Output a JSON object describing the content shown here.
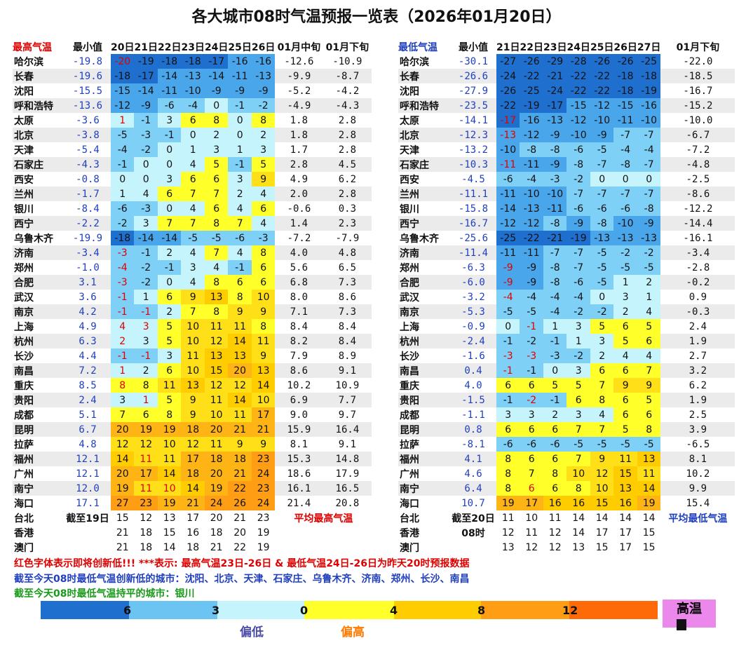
{
  "title": "各大城市08时气温预报一览表（2026年01月20日）",
  "colors": {
    "hot": "#ec88ec",
    "red_text": "#e00000",
    "blue_text": "#1f3fbf",
    "green_text": "#1a9a1a"
  },
  "left_table": {
    "headers": [
      "最高气温",
      "最小值",
      "20日",
      "21日",
      "22日",
      "23日",
      "24日",
      "25日",
      "26日",
      "01月中旬",
      "01月下旬"
    ],
    "rows": [
      [
        "哈尔滨",
        "-19.8",
        "-20",
        "-19",
        "-18",
        "-18",
        "-17",
        "-16",
        "-16",
        "-12.6",
        "-10.9"
      ],
      [
        "长春",
        "-19.6",
        "-18",
        "-17",
        "-14",
        "-13",
        "-14",
        "-11",
        "-13",
        "-9.9",
        "-8.7"
      ],
      [
        "沈阳",
        "-15.5",
        "-15",
        "-14",
        "-11",
        "-10",
        "-9",
        "-9",
        "-9",
        "-5.2",
        "-4.2"
      ],
      [
        "呼和浩特",
        "-13.6",
        "-12",
        "-9",
        "-6",
        "-4",
        "0",
        "-1",
        "-2",
        "-4.9",
        "-4.3"
      ],
      [
        "太原",
        "-3.6",
        "1",
        "-1",
        "3",
        "6",
        "8",
        "0",
        "8",
        "1.8",
        "2.8"
      ],
      [
        "北京",
        "-3.8",
        "-5",
        "-3",
        "-1",
        "0",
        "2",
        "0",
        "2",
        "1.8",
        "2.8"
      ],
      [
        "天津",
        "-5.4",
        "-4",
        "-2",
        "0",
        "1",
        "3",
        "1",
        "3",
        "1.7",
        "2.8"
      ],
      [
        "石家庄",
        "-4.3",
        "-1",
        "0",
        "0",
        "4",
        "5",
        "-1",
        "5",
        "2.8",
        "4.5"
      ],
      [
        "西安",
        "-0.8",
        "0",
        "0",
        "3",
        "6",
        "6",
        "3",
        "9",
        "4.9",
        "6.2"
      ],
      [
        "兰州",
        "-1.7",
        "1",
        "4",
        "6",
        "7",
        "7",
        "2",
        "4",
        "2.0",
        "2.8"
      ],
      [
        "银川",
        "-8.4",
        "-6",
        "-3",
        "0",
        "4",
        "6",
        "4",
        "6",
        "-0.6",
        "0.3"
      ],
      [
        "西宁",
        "-2.2",
        "-2",
        "3",
        "7",
        "7",
        "8",
        "7",
        "4",
        "1.4",
        "2.3"
      ],
      [
        "乌鲁木齐",
        "-19.9",
        "-18",
        "-14",
        "-14",
        "-5",
        "-5",
        "-6",
        "-3",
        "-7.2",
        "-7.9"
      ],
      [
        "济南",
        "-3.4",
        "-3",
        "-1",
        "2",
        "4",
        "7",
        "4",
        "8",
        "4.0",
        "4.8"
      ],
      [
        "郑州",
        "-1.0",
        "-4",
        "-2",
        "-1",
        "3",
        "4",
        "-1",
        "6",
        "5.6",
        "6.5"
      ],
      [
        "合肥",
        "3.1",
        "-3",
        "-2",
        "0",
        "4",
        "8",
        "6",
        "6",
        "6.8",
        "7.3"
      ],
      [
        "武汉",
        "3.6",
        "-1",
        "1",
        "6",
        "9",
        "13",
        "8",
        "10",
        "8.0",
        "8.6"
      ],
      [
        "南京",
        "4.2",
        "-1",
        "-1",
        "2",
        "7",
        "8",
        "9",
        "9",
        "7.1",
        "7.3"
      ],
      [
        "上海",
        "4.9",
        "4",
        "3",
        "5",
        "10",
        "11",
        "11",
        "8",
        "8.4",
        "8.4"
      ],
      [
        "杭州",
        "6.3",
        "2",
        "3",
        "5",
        "10",
        "12",
        "14",
        "11",
        "8.2",
        "8.4"
      ],
      [
        "长沙",
        "4.4",
        "-1",
        "-1",
        "3",
        "11",
        "13",
        "13",
        "9",
        "7.9",
        "8.9"
      ],
      [
        "南昌",
        "7.2",
        "1",
        "2",
        "6",
        "10",
        "15",
        "20",
        "13",
        "8.6",
        "9.1"
      ],
      [
        "重庆",
        "8.5",
        "8",
        "8",
        "11",
        "13",
        "12",
        "12",
        "14",
        "10.2",
        "10.9"
      ],
      [
        "贵阳",
        "2.4",
        "3",
        "1",
        "5",
        "9",
        "11",
        "14",
        "10",
        "6.9",
        "7.7"
      ],
      [
        "成都",
        "5.1",
        "7",
        "6",
        "8",
        "9",
        "10",
        "11",
        "17",
        "9.0",
        "9.7"
      ],
      [
        "昆明",
        "6.7",
        "20",
        "19",
        "19",
        "18",
        "20",
        "21",
        "21",
        "15.9",
        "16.4"
      ],
      [
        "拉萨",
        "4.8",
        "12",
        "12",
        "10",
        "12",
        "11",
        "9",
        "9",
        "8.1",
        "9.1"
      ],
      [
        "福州",
        "12.1",
        "14",
        "11",
        "11",
        "17",
        "18",
        "18",
        "23",
        "15.3",
        "14.8"
      ],
      [
        "广州",
        "12.1",
        "20",
        "17",
        "14",
        "18",
        "20",
        "21",
        "24",
        "18.6",
        "17.9"
      ],
      [
        "南宁",
        "12.0",
        "19",
        "11",
        "10",
        "14",
        "19",
        "22",
        "23",
        "16.1",
        "16.5"
      ],
      [
        "海口",
        "17.1",
        "27",
        "23",
        "19",
        "21",
        "24",
        "26",
        "24",
        "21.4",
        "20.8"
      ]
    ],
    "red_cells": [
      "0-2",
      "4-2",
      "13-2",
      "14-2",
      "15-2",
      "16-2",
      "17-2",
      "18-2",
      "19-2",
      "20-2",
      "21-2",
      "22-2",
      "18-3",
      "20-3",
      "17-3",
      "23-3",
      "27-3",
      "29-3",
      "29-4"
    ],
    "extra_rows": [
      [
        "台北",
        "截至19日",
        "15",
        "12",
        "13",
        "17",
        "20",
        "21",
        "23",
        "平均最高气温"
      ],
      [
        "香港",
        "",
        "21",
        "18",
        "15",
        "16",
        "18",
        "20",
        "19",
        ""
      ],
      [
        "澳门",
        "",
        "21",
        "18",
        "14",
        "18",
        "21",
        "22",
        "19",
        ""
      ]
    ]
  },
  "right_table": {
    "headers": [
      "最低气温",
      "最小值",
      "21日",
      "22日",
      "23日",
      "24日",
      "25日",
      "26日",
      "27日",
      "01月下旬"
    ],
    "rows": [
      [
        "哈尔滨",
        "-30.1",
        "-27",
        "-26",
        "-29",
        "-28",
        "-26",
        "-26",
        "-25",
        "-22.0"
      ],
      [
        "长春",
        "-26.6",
        "-24",
        "-22",
        "-21",
        "-22",
        "-22",
        "-18",
        "-18",
        "-18.5"
      ],
      [
        "沈阳",
        "-27.9",
        "-26",
        "-25",
        "-24",
        "-22",
        "-22",
        "-18",
        "-19",
        "-16.7"
      ],
      [
        "呼和浩特",
        "-23.5",
        "-22",
        "-19",
        "-17",
        "-15",
        "-12",
        "-15",
        "-16",
        "-15.2"
      ],
      [
        "太原",
        "-14.1",
        "-17",
        "-16",
        "-13",
        "-12",
        "-10",
        "-11",
        "-10",
        "-10.0"
      ],
      [
        "北京",
        "-12.3",
        "-13",
        "-12",
        "-9",
        "-10",
        "-9",
        "-7",
        "-7",
        "-6.7"
      ],
      [
        "天津",
        "-13.2",
        "-10",
        "-8",
        "-8",
        "-6",
        "-5",
        "-4",
        "-4",
        "-7.2"
      ],
      [
        "石家庄",
        "-10.3",
        "-11",
        "-11",
        "-9",
        "-8",
        "-7",
        "-8",
        "-7",
        "-4.8"
      ],
      [
        "西安",
        "-4.5",
        "-6",
        "-4",
        "-3",
        "-2",
        "0",
        "0",
        "0",
        "-2.5"
      ],
      [
        "兰州",
        "-11.1",
        "-11",
        "-10",
        "-10",
        "-7",
        "-7",
        "-7",
        "-7",
        "-8.6"
      ],
      [
        "银川",
        "-15.8",
        "-14",
        "-13",
        "-11",
        "-6",
        "-6",
        "-6",
        "-8",
        "-12.2"
      ],
      [
        "西宁",
        "-16.7",
        "-12",
        "-12",
        "-8",
        "-9",
        "-8",
        "-10",
        "-9",
        "-14.4"
      ],
      [
        "乌鲁木齐",
        "-25.6",
        "-25",
        "-22",
        "-21",
        "-19",
        "-13",
        "-13",
        "-13",
        "-16.1"
      ],
      [
        "济南",
        "-11.4",
        "-11",
        "-11",
        "-7",
        "-7",
        "-5",
        "-2",
        "-2",
        "-3.4"
      ],
      [
        "郑州",
        "-6.3",
        "-9",
        "-9",
        "-8",
        "-7",
        "-5",
        "-5",
        "-5",
        "-2.8"
      ],
      [
        "合肥",
        "-6.0",
        "-9",
        "-9",
        "-8",
        "-6",
        "-5",
        "1",
        "2",
        "-0.2"
      ],
      [
        "武汉",
        "-3.2",
        "-4",
        "-4",
        "-4",
        "-4",
        "0",
        "3",
        "1",
        "0.9"
      ],
      [
        "南京",
        "-5.3",
        "-5",
        "-5",
        "-4",
        "-2",
        "-2",
        "2",
        "4",
        "-0.3"
      ],
      [
        "上海",
        "-0.9",
        "0",
        "-1",
        "1",
        "3",
        "5",
        "6",
        "5",
        "2.4"
      ],
      [
        "杭州",
        "-2.4",
        "-1",
        "-2",
        "-1",
        "1",
        "3",
        "5",
        "6",
        "1.9"
      ],
      [
        "长沙",
        "-1.6",
        "-3",
        "-3",
        "-3",
        "-2",
        "2",
        "4",
        "4",
        "2.7"
      ],
      [
        "南昌",
        "0.4",
        "-1",
        "-1",
        "0",
        "3",
        "6",
        "6",
        "7",
        "3.2"
      ],
      [
        "重庆",
        "4.0",
        "6",
        "6",
        "5",
        "5",
        "7",
        "9",
        "9",
        "6.2"
      ],
      [
        "贵阳",
        "-1.5",
        "-1",
        "-2",
        "-1",
        "6",
        "8",
        "6",
        "5",
        "1.9"
      ],
      [
        "成都",
        "-1.1",
        "3",
        "3",
        "2",
        "3",
        "4",
        "6",
        "6",
        "2.5"
      ],
      [
        "昆明",
        "0.8",
        "6",
        "6",
        "6",
        "7",
        "7",
        "5",
        "8",
        "3.9"
      ],
      [
        "拉萨",
        "-8.1",
        "-6",
        "-6",
        "-6",
        "-5",
        "-5",
        "-5",
        "-5",
        "-6.5"
      ],
      [
        "福州",
        "4.1",
        "8",
        "6",
        "6",
        "7",
        "9",
        "11",
        "13",
        "8.1"
      ],
      [
        "广州",
        "4.6",
        "8",
        "7",
        "8",
        "10",
        "12",
        "15",
        "11",
        "10.2"
      ],
      [
        "南宁",
        "6.4",
        "8",
        "6",
        "6",
        "8",
        "10",
        "13",
        "14",
        "9.9"
      ],
      [
        "海口",
        "10.7",
        "19",
        "17",
        "16",
        "16",
        "15",
        "16",
        "19",
        "15.4"
      ]
    ],
    "red_cells": [
      "4-2",
      "5-2",
      "7-2",
      "14-2",
      "15-2",
      "16-2",
      "20-2",
      "21-2",
      "20-3",
      "18-3",
      "23-3",
      "29-3"
    ],
    "extra_rows": [
      [
        "台北",
        "截至20日",
        "11",
        "10",
        "11",
        "14",
        "14",
        "14",
        "14",
        "平均最低气温"
      ],
      [
        "香港",
        "08时",
        "12",
        "11",
        "12",
        "14",
        "17",
        "17",
        "15",
        ""
      ],
      [
        "澳门",
        "",
        "13",
        "12",
        "12",
        "13",
        "15",
        "17",
        "15",
        ""
      ]
    ]
  },
  "footnotes": {
    "line1": "红色字体表示即将创新低!!! ***表示: 最高气温23日-26日 & 最低气温24日-26日为昨天20时预报数据",
    "line2": "截至今天08时最低气温创新低的城市：沈阳、北京、天津、石家庄、乌鲁木齐、济南、郑州、长沙、南昌",
    "line3": "截至今天08时最低气温持平的城市：银川"
  },
  "legend": {
    "labels": [
      "6",
      "3",
      "0",
      "4",
      "8",
      "12"
    ],
    "low_label": "偏低",
    "high_label": "偏高",
    "hot_label": "高温"
  }
}
